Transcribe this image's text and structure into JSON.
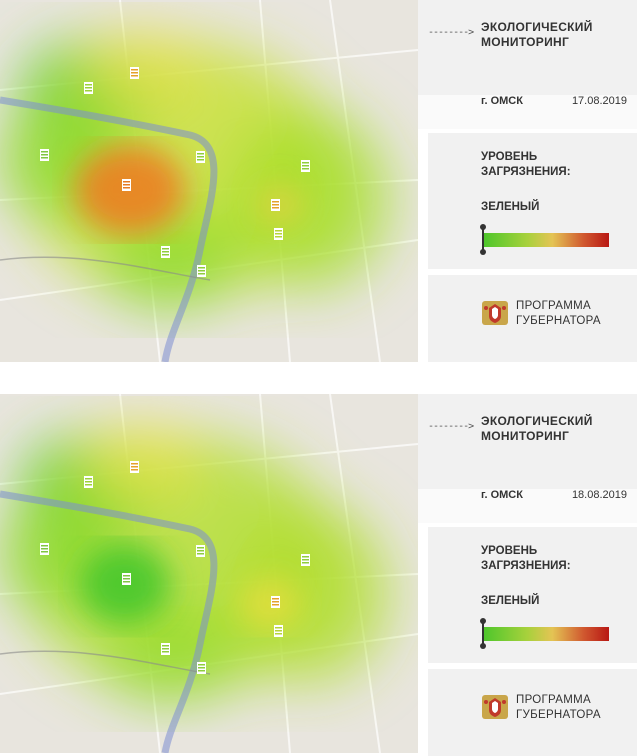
{
  "panels": [
    {
      "title": "ЭКОЛОГИЧЕСКИЙ МОНИТОРИНГ",
      "arrow": "-------->",
      "city": "г. ОМСК",
      "date": "17.08.2019",
      "level_label": "УРОВЕНЬ ЗАГРЯЗНЕНИЯ:",
      "level_value": "ЗЕЛЕНЫЙ",
      "program": "ПРОГРАММА ГУБЕРНАТОРА",
      "pollution_position": 0.0
    },
    {
      "title": "ЭКОЛОГИЧЕСКИЙ МОНИТОРИНГ",
      "arrow": "-------->",
      "city": "г. ОМСК",
      "date": "18.08.2019",
      "level_label": "УРОВЕНЬ ЗАГРЯЗНЕНИЯ:",
      "level_value": "ЗЕЛЕНЫЙ",
      "program": "ПРОГРАММА ГУБЕРНАТОРА",
      "pollution_position": 0.0
    }
  ],
  "colors": {
    "green": "#4cc62b",
    "yellow": "#e4c454",
    "red": "#b81814",
    "orange": "#e98a2c",
    "river": "#7b8ed2"
  },
  "icons": [
    "document-marker-icon",
    "emblem-icon",
    "arrow-right-icon"
  ]
}
